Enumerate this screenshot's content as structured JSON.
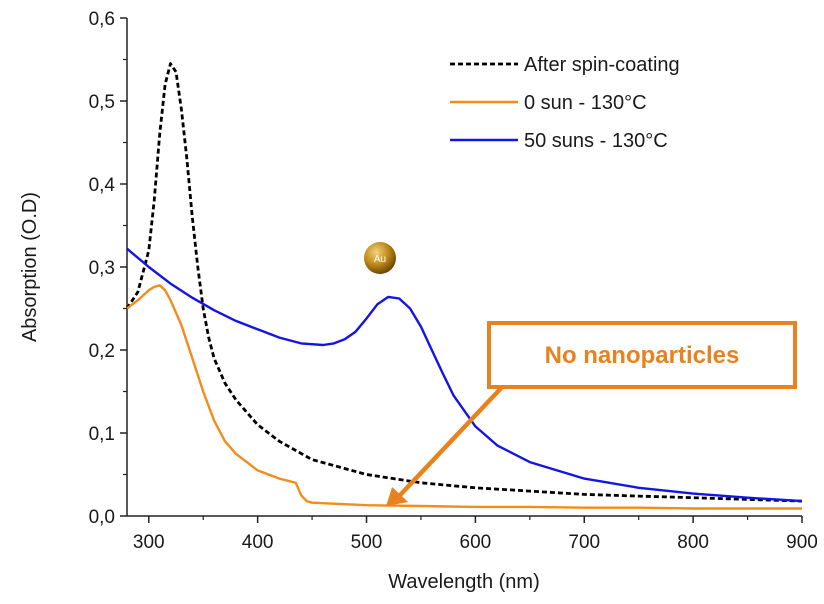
{
  "chart_data": {
    "type": "line",
    "xlabel": "Wavelength (nm)",
    "ylabel": "Absorption (O.D)",
    "xlim": [
      280,
      900
    ],
    "ylim": [
      0,
      0.6
    ],
    "x_ticks": [
      "300",
      "400",
      "500",
      "600",
      "700",
      "800",
      "900"
    ],
    "y_ticks": [
      "0,0",
      "0,1",
      "0,2",
      "0,3",
      "0,4",
      "0,5",
      "0,6"
    ],
    "legend_position": "top-right",
    "series": [
      {
        "name": "After spin-coating",
        "color": "#000000",
        "style": "dashed",
        "x": [
          280,
          290,
          300,
          305,
          310,
          315,
          320,
          325,
          330,
          335,
          340,
          345,
          350,
          355,
          360,
          370,
          380,
          390,
          400,
          420,
          450,
          500,
          550,
          600,
          650,
          700,
          750,
          800,
          850,
          900
        ],
        "y": [
          0.25,
          0.27,
          0.32,
          0.38,
          0.46,
          0.52,
          0.545,
          0.535,
          0.49,
          0.43,
          0.36,
          0.3,
          0.25,
          0.215,
          0.19,
          0.16,
          0.14,
          0.125,
          0.11,
          0.09,
          0.068,
          0.05,
          0.04,
          0.034,
          0.03,
          0.026,
          0.024,
          0.022,
          0.02,
          0.018
        ]
      },
      {
        "name": "0 sun - 130°C",
        "color": "#f28c1c",
        "style": "solid",
        "x": [
          280,
          290,
          300,
          305,
          310,
          315,
          320,
          330,
          340,
          350,
          360,
          370,
          380,
          390,
          400,
          420,
          435,
          440,
          445,
          450,
          500,
          550,
          600,
          650,
          700,
          750,
          800,
          850,
          900
        ],
        "y": [
          0.25,
          0.26,
          0.272,
          0.276,
          0.278,
          0.272,
          0.26,
          0.23,
          0.19,
          0.15,
          0.115,
          0.09,
          0.075,
          0.065,
          0.055,
          0.045,
          0.04,
          0.025,
          0.018,
          0.016,
          0.013,
          0.012,
          0.011,
          0.011,
          0.01,
          0.01,
          0.009,
          0.009,
          0.009
        ]
      },
      {
        "name": "50 suns - 130°C",
        "color": "#1414e6",
        "style": "solid",
        "x": [
          280,
          300,
          320,
          340,
          360,
          380,
          400,
          420,
          440,
          460,
          470,
          480,
          490,
          500,
          510,
          520,
          530,
          540,
          550,
          560,
          570,
          580,
          600,
          620,
          650,
          700,
          750,
          800,
          850,
          900
        ],
        "y": [
          0.322,
          0.3,
          0.28,
          0.263,
          0.248,
          0.235,
          0.225,
          0.215,
          0.208,
          0.206,
          0.208,
          0.213,
          0.222,
          0.238,
          0.255,
          0.264,
          0.262,
          0.25,
          0.228,
          0.2,
          0.172,
          0.145,
          0.108,
          0.085,
          0.065,
          0.045,
          0.034,
          0.027,
          0.022,
          0.018
        ]
      }
    ],
    "annotations": {
      "particle_label": "Au",
      "callout_text": "No nanoparticles",
      "callout_color": "#e8821e",
      "arrow_target": {
        "x": 518,
        "y": 0.012
      }
    }
  }
}
